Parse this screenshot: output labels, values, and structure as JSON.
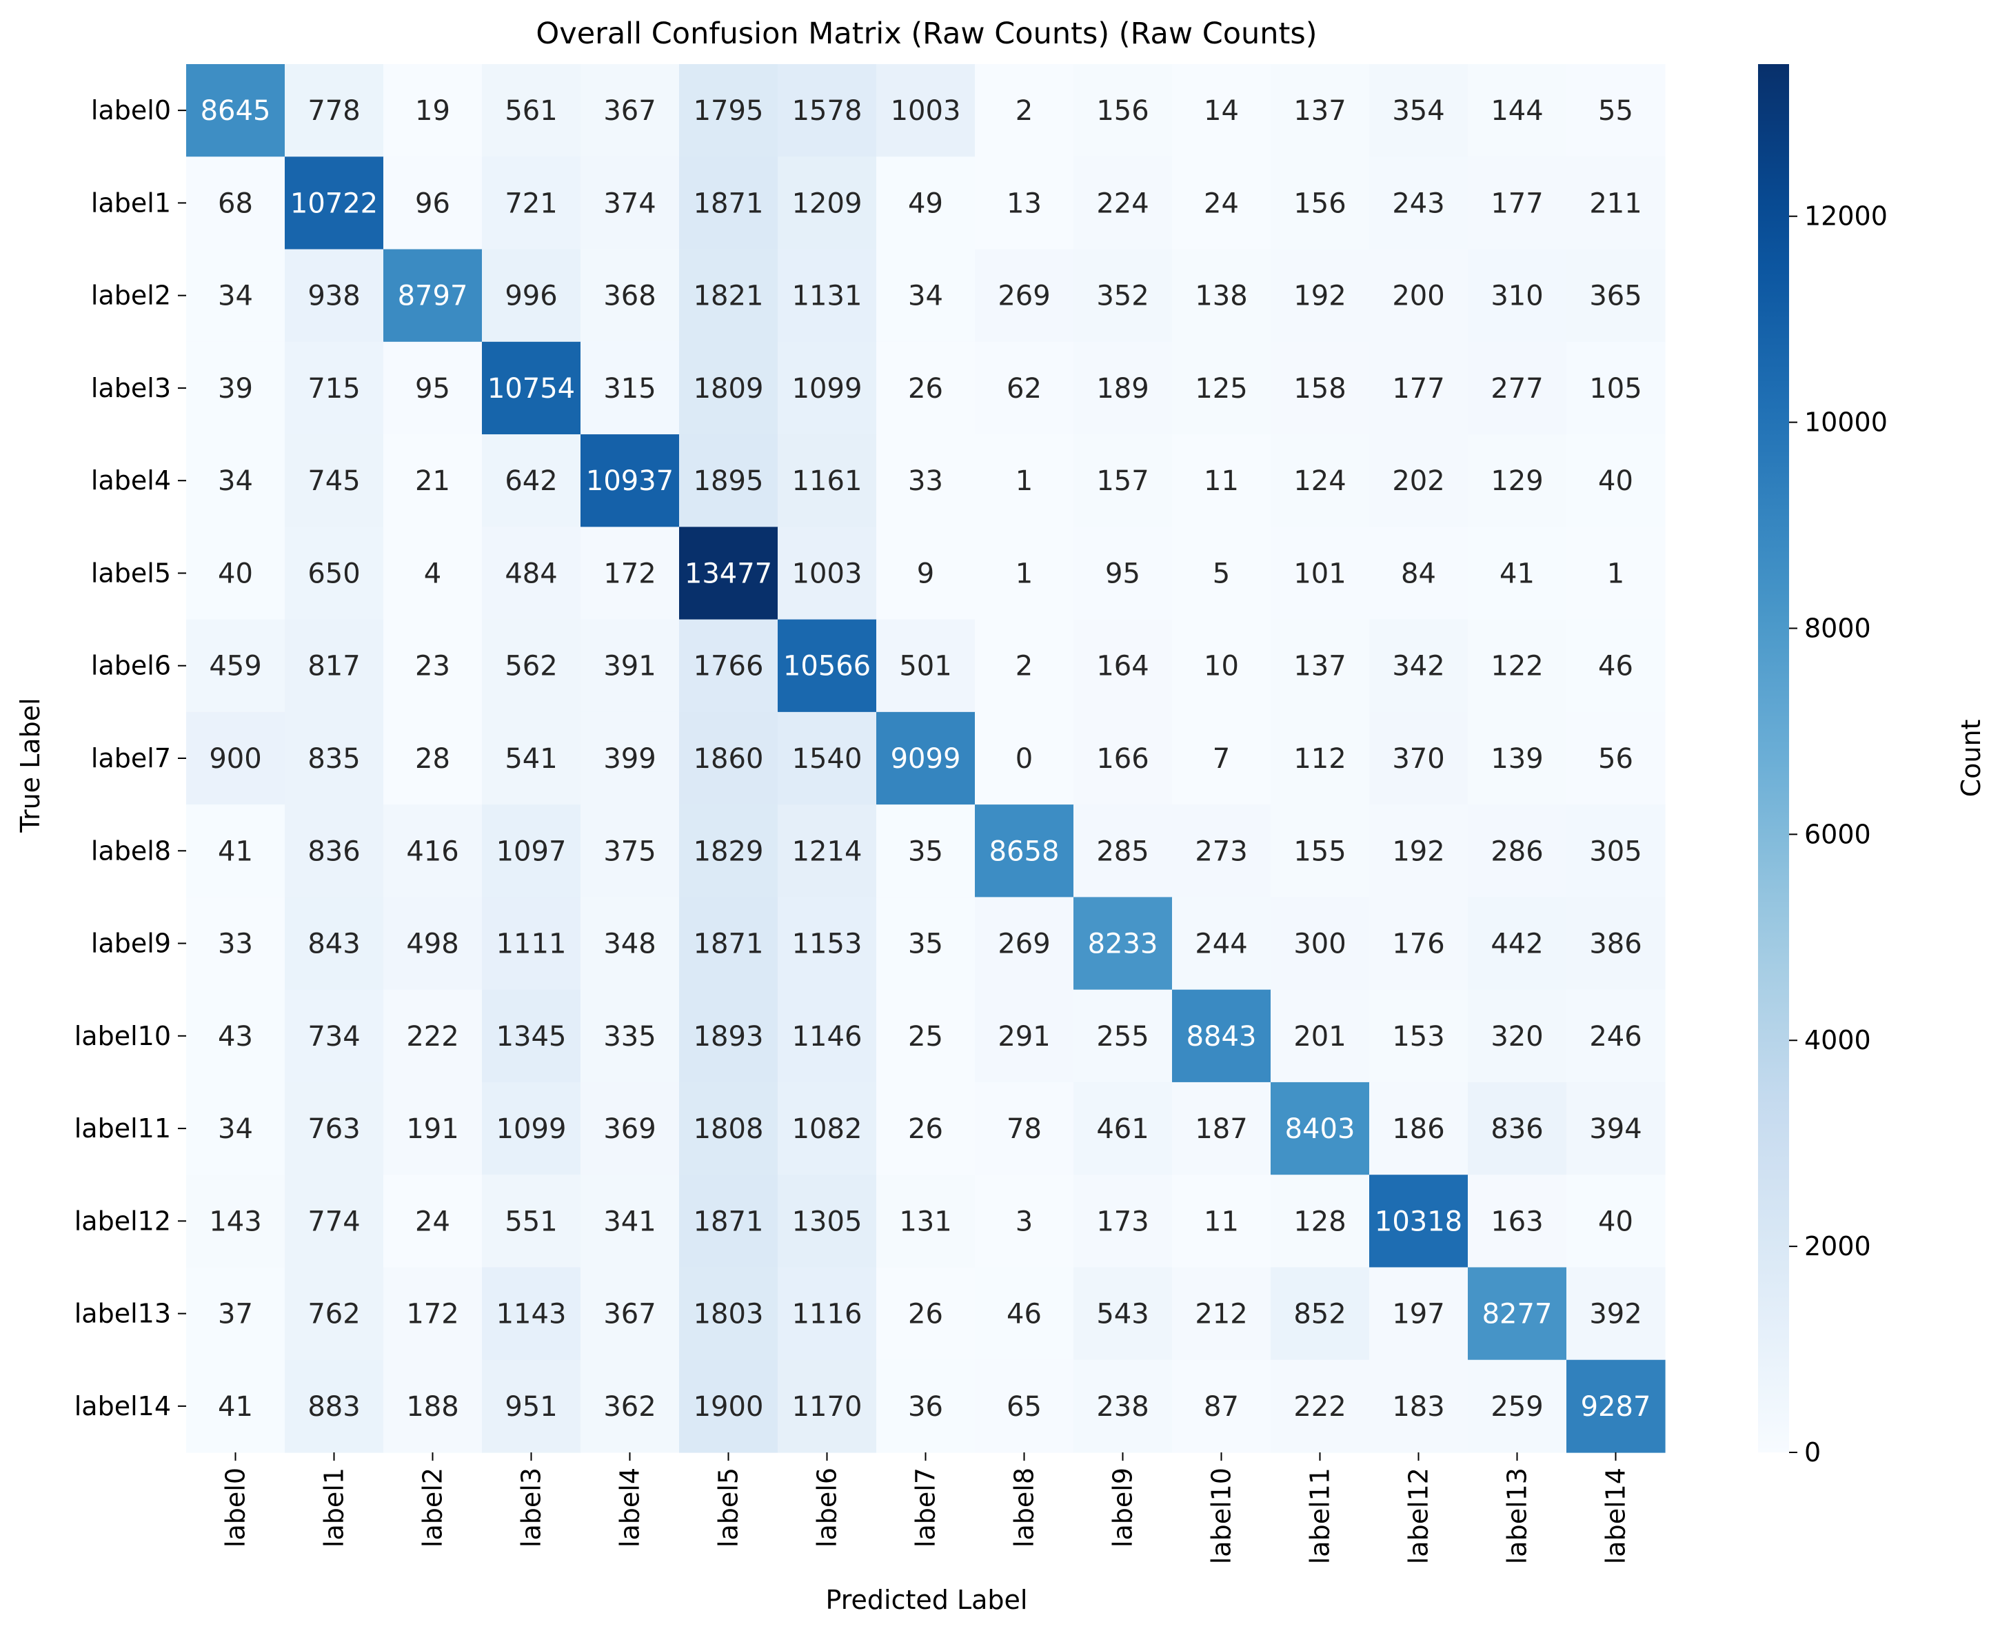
{
  "chart_data": {
    "type": "heatmap",
    "title": "Overall Confusion Matrix (Raw Counts) (Raw Counts)",
    "xlabel": "Predicted Label",
    "ylabel": "True Label",
    "x_categories": [
      "label0",
      "label1",
      "label2",
      "label3",
      "label4",
      "label5",
      "label6",
      "label7",
      "label8",
      "label9",
      "label10",
      "label11",
      "label12",
      "label13",
      "label14"
    ],
    "y_categories": [
      "label0",
      "label1",
      "label2",
      "label3",
      "label4",
      "label5",
      "label6",
      "label7",
      "label8",
      "label9",
      "label10",
      "label11",
      "label12",
      "label13",
      "label14"
    ],
    "values": [
      [
        8645,
        778,
        19,
        561,
        367,
        1795,
        1578,
        1003,
        2,
        156,
        14,
        137,
        354,
        144,
        55
      ],
      [
        68,
        10722,
        96,
        721,
        374,
        1871,
        1209,
        49,
        13,
        224,
        24,
        156,
        243,
        177,
        211
      ],
      [
        34,
        938,
        8797,
        996,
        368,
        1821,
        1131,
        34,
        269,
        352,
        138,
        192,
        200,
        310,
        365
      ],
      [
        39,
        715,
        95,
        10754,
        315,
        1809,
        1099,
        26,
        62,
        189,
        125,
        158,
        177,
        277,
        105
      ],
      [
        34,
        745,
        21,
        642,
        10937,
        1895,
        1161,
        33,
        1,
        157,
        11,
        124,
        202,
        129,
        40
      ],
      [
        40,
        650,
        4,
        484,
        172,
        13477,
        1003,
        9,
        1,
        95,
        5,
        101,
        84,
        41,
        1
      ],
      [
        459,
        817,
        23,
        562,
        391,
        1766,
        10566,
        501,
        2,
        164,
        10,
        137,
        342,
        122,
        46
      ],
      [
        900,
        835,
        28,
        541,
        399,
        1860,
        1540,
        9099,
        0,
        166,
        7,
        112,
        370,
        139,
        56
      ],
      [
        41,
        836,
        416,
        1097,
        375,
        1829,
        1214,
        35,
        8658,
        285,
        273,
        155,
        192,
        286,
        305
      ],
      [
        33,
        843,
        498,
        1111,
        348,
        1871,
        1153,
        35,
        269,
        8233,
        244,
        300,
        176,
        442,
        386
      ],
      [
        43,
        734,
        222,
        1345,
        335,
        1893,
        1146,
        25,
        291,
        255,
        8843,
        201,
        153,
        320,
        246
      ],
      [
        34,
        763,
        191,
        1099,
        369,
        1808,
        1082,
        26,
        78,
        461,
        187,
        8403,
        186,
        836,
        394
      ],
      [
        143,
        774,
        24,
        551,
        341,
        1871,
        1305,
        131,
        3,
        173,
        11,
        128,
        10318,
        163,
        40
      ],
      [
        37,
        762,
        172,
        1143,
        367,
        1803,
        1116,
        26,
        46,
        543,
        212,
        852,
        197,
        8277,
        392
      ],
      [
        41,
        883,
        188,
        951,
        362,
        1900,
        1170,
        36,
        65,
        238,
        87,
        222,
        183,
        259,
        9287
      ]
    ],
    "vmin": 0,
    "vmax": 13477,
    "colormap": "Blues",
    "colorbar": {
      "label": "Count",
      "ticks": [
        0,
        2000,
        4000,
        6000,
        8000,
        10000,
        12000
      ]
    },
    "grid": false,
    "legend": "none"
  }
}
